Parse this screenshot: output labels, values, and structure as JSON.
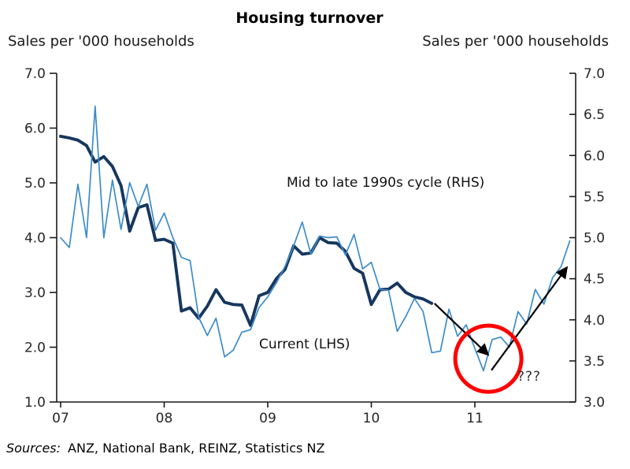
{
  "title": "Housing turnover",
  "sources": {
    "label": "Sources:",
    "text": "ANZ, National Bank, REINZ, Statistics NZ"
  },
  "chart_data": {
    "type": "line",
    "title": "Housing turnover",
    "x_axis": {
      "tick_labels": [
        "07",
        "08",
        "09",
        "10",
        "11"
      ],
      "tick_years": [
        7,
        8,
        9,
        10,
        11
      ],
      "note": "monthly data from Jan 2007; thin series runs to late 2011"
    },
    "left_axis": {
      "label": "Sales per '000 households",
      "min": 1.0,
      "max": 7.0,
      "tick_step": 1.0,
      "tick_values": [
        7.0,
        6.0,
        5.0,
        4.0,
        3.0,
        2.0,
        1.0
      ],
      "tick_labels": [
        "7.0",
        "6.0",
        "5.0",
        "4.0",
        "3.0",
        "2.0",
        "1.0"
      ]
    },
    "right_axis": {
      "label": "Sales per '000 households",
      "min": 3.0,
      "max": 7.0,
      "tick_step": 0.5,
      "tick_values": [
        7.0,
        6.5,
        6.0,
        5.5,
        5.0,
        4.5,
        4.0,
        3.5,
        3.0
      ],
      "tick_labels": [
        "7.0",
        "6.5",
        "6.0",
        "5.5",
        "5.0",
        "4.5",
        "4.0",
        "3.5",
        "3.0"
      ]
    },
    "series": [
      {
        "name": "Current (LHS)",
        "axis": "LHS",
        "color": "#17375e",
        "start_year": 7,
        "interval_months": 1,
        "values": [
          5.85,
          5.82,
          5.78,
          5.68,
          5.38,
          5.48,
          5.3,
          4.95,
          4.12,
          4.55,
          4.6,
          3.95,
          3.97,
          3.9,
          2.66,
          2.72,
          2.53,
          2.75,
          3.05,
          2.82,
          2.78,
          2.77,
          2.4,
          2.94,
          3.0,
          3.25,
          3.42,
          3.85,
          3.7,
          3.72,
          4.0,
          3.91,
          3.9,
          3.75,
          3.44,
          3.35,
          2.78,
          3.05,
          3.06,
          3.17,
          3.0,
          2.92,
          2.88,
          2.8
        ]
      },
      {
        "name": "Mid to late 1990s cycle (RHS)",
        "axis": "RHS",
        "color": "#3c8cca",
        "start_year": 7,
        "interval_months": 1,
        "values": [
          5.0,
          4.88,
          5.65,
          5.0,
          6.6,
          5.0,
          5.7,
          5.1,
          5.67,
          5.38,
          5.65,
          5.09,
          5.3,
          5.0,
          4.76,
          4.72,
          4.03,
          3.81,
          4.02,
          3.55,
          3.63,
          3.85,
          3.88,
          4.15,
          4.28,
          4.45,
          4.65,
          4.9,
          5.19,
          4.8,
          5.02,
          5.0,
          5.01,
          4.79,
          5.04,
          4.62,
          4.7,
          4.37,
          4.36,
          3.86,
          4.04,
          4.26,
          4.1,
          3.6,
          3.62,
          4.13,
          3.8,
          3.94,
          3.65,
          3.38,
          3.76,
          3.79,
          3.67,
          4.1,
          3.95,
          4.37,
          4.19,
          4.51,
          4.65,
          4.96
        ]
      }
    ],
    "annotations": {
      "question_text": "???",
      "circle": {
        "year": 11.13,
        "lhs_value": 1.79,
        "color": "#ff0000"
      },
      "arrows": [
        {
          "id": "arrow-down",
          "from_year": 10.61,
          "from_lhs": 2.8,
          "to_year": 11.13,
          "to_lhs": 1.86
        },
        {
          "id": "arrow-up",
          "from_year": 11.16,
          "from_lhs": 1.58,
          "to_year": 11.89,
          "to_lhs": 3.46
        }
      ]
    }
  }
}
